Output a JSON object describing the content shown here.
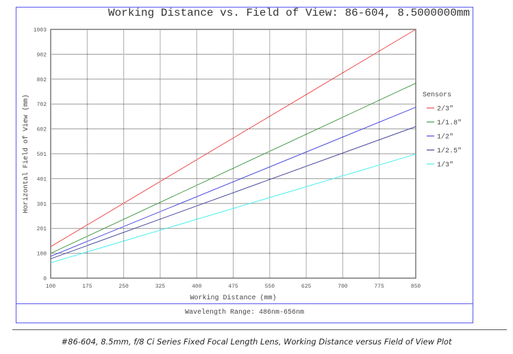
{
  "chart_data": {
    "type": "line",
    "title": "Working Distance vs. Field of View: 86-604, 8.5000000mm",
    "xlabel": "Working Distance (mm)",
    "ylabel": "Horizontal Field of View (mm)",
    "xlim": [
      100,
      850
    ],
    "ylim": [
      0,
      1003
    ],
    "xticks": [
      "100",
      "175",
      "250",
      "325",
      "400",
      "475",
      "550",
      "625",
      "700",
      "775",
      "850"
    ],
    "yticks": [
      "0",
      "100",
      "201",
      "301",
      "401",
      "501",
      "602",
      "702",
      "802",
      "902",
      "1003"
    ],
    "grid": true,
    "legend_title": "Sensors",
    "legend_position": "right",
    "x": [
      100,
      850
    ],
    "series": [
      {
        "name": "2/3\"",
        "color": "#ee4444",
        "values": [
          127,
          1003
        ]
      },
      {
        "name": "1/1.8\"",
        "color": "#449944",
        "values": [
          100,
          786
        ]
      },
      {
        "name": "1/2\"",
        "color": "#4444dd",
        "values": [
          88,
          689
        ]
      },
      {
        "name": "1/2.5\"",
        "color": "#444499",
        "values": [
          78,
          611
        ]
      },
      {
        "name": "1/3\"",
        "color": "#44eeee",
        "values": [
          62,
          500
        ]
      }
    ]
  },
  "footer": {
    "wavelength": "Wavelength Range: 486nm-656nm"
  },
  "caption": "#86-604, 8.5mm, f/8 Ci Series Fixed Focal Length Lens, Working Distance versus Field of View Plot"
}
